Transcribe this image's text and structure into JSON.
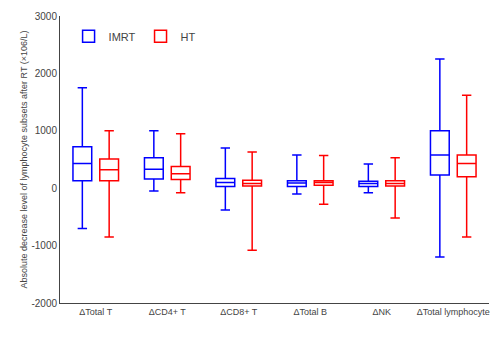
{
  "chart_data": {
    "type": "box",
    "categories": [
      "ΔTotal T",
      "ΔCD4+ T",
      "ΔCD8+ T",
      "ΔTotal B",
      "ΔNK",
      "ΔTotal lymphocyte"
    ],
    "series": [
      {
        "name": "IMRT",
        "color": "#0000FF",
        "values": [
          {
            "whislo": -700,
            "q1": 130,
            "med": 430,
            "q3": 720,
            "whishi": 1750
          },
          {
            "whislo": -50,
            "q1": 160,
            "med": 330,
            "q3": 530,
            "whishi": 1000
          },
          {
            "whislo": -380,
            "q1": 30,
            "med": 100,
            "q3": 170,
            "whishi": 700
          },
          {
            "whislo": -100,
            "q1": 30,
            "med": 90,
            "q3": 130,
            "whishi": 580
          },
          {
            "whislo": -80,
            "q1": 30,
            "med": 80,
            "q3": 120,
            "whishi": 420
          },
          {
            "whislo": -1200,
            "q1": 230,
            "med": 580,
            "q3": 1000,
            "whishi": 2250
          }
        ]
      },
      {
        "name": "HT",
        "color": "#FF0000",
        "values": [
          {
            "whislo": -850,
            "q1": 130,
            "med": 320,
            "q3": 510,
            "whishi": 1000
          },
          {
            "whislo": -80,
            "q1": 150,
            "med": 250,
            "q3": 380,
            "whishi": 950
          },
          {
            "whislo": -1080,
            "q1": 40,
            "med": 80,
            "q3": 140,
            "whishi": 630
          },
          {
            "whislo": -280,
            "q1": 50,
            "med": 100,
            "q3": 130,
            "whishi": 570
          },
          {
            "whislo": -520,
            "q1": 40,
            "med": 80,
            "q3": 130,
            "whishi": 530
          },
          {
            "whislo": -850,
            "q1": 200,
            "med": 430,
            "q3": 580,
            "whishi": 1620
          }
        ]
      }
    ],
    "ylabel": "Absolute decrease level of lymphocyte subsets after RT (×106/L)",
    "ylim": [
      -2000,
      3000
    ],
    "yticks": [
      -2000,
      -1000,
      0,
      1000,
      2000,
      3000
    ],
    "legend": "upper left",
    "grid": false
  }
}
